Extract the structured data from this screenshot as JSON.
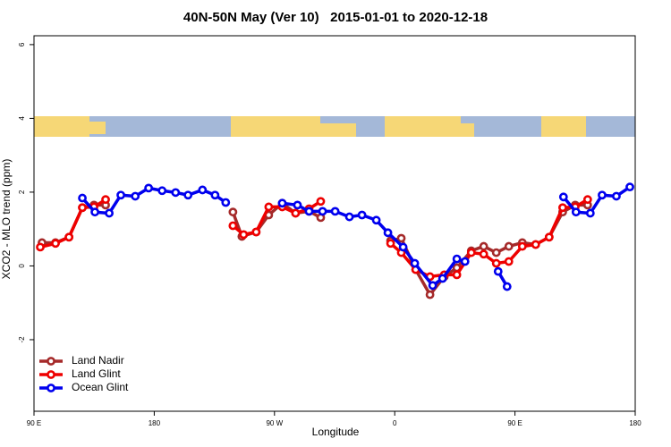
{
  "chart_data": {
    "type": "line",
    "title": "40N-50N May (Ver 10)   2015-01-01 to 2020-12-18",
    "x_label": "Longitude",
    "y_label": "XCO2 - MLO trend (ppm)",
    "xlim": [
      90,
      540
    ],
    "xticks": [
      {
        "value": 90,
        "label": "90 E"
      },
      {
        "value": 180,
        "label": "180"
      },
      {
        "value": 270,
        "label": "90 W"
      },
      {
        "value": 360,
        "label": "0"
      },
      {
        "value": 450,
        "label": "90 E"
      },
      {
        "value": 540,
        "label": "180"
      }
    ],
    "ylim": [
      -3.94,
      6.24
    ],
    "yticks": [
      -2,
      0,
      2,
      4,
      6
    ],
    "legend": "bottom-left",
    "series": [
      {
        "name": "Land Nadir",
        "color": "#a52a2a",
        "x": [
          96.0,
          106.1,
          116.2,
          126.2,
          134.9,
          143.6,
          null,
          238.9,
          245.6,
          256.3,
          265.7,
          275.8,
          285.8,
          295.9,
          304.6,
          null,
          356.9,
          364.9,
          375.7,
          386.4,
          397.1,
          406.5,
          417.3,
          426.6,
          436.0,
          445.4,
          455.5,
          465.5,
          475.6,
          485.7,
          495.1,
          504.4
        ],
        "values": [
          0.63,
          0.63,
          0.78,
          1.58,
          1.65,
          1.65,
          null,
          1.46,
          0.8,
          0.92,
          1.38,
          1.7,
          1.43,
          1.48,
          1.31,
          null,
          0.68,
          0.75,
          -0.1,
          -0.78,
          -0.29,
          -0.05,
          0.41,
          0.53,
          0.36,
          0.53,
          0.63,
          0.58,
          0.78,
          1.46,
          1.65,
          1.65
        ]
      },
      {
        "name": "Land Glint",
        "color": "#ee0000",
        "x": [
          94.7,
          106.1,
          116.2,
          126.2,
          134.9,
          143.6,
          null,
          238.9,
          246.9,
          256.3,
          265.7,
          275.8,
          285.8,
          295.9,
          304.6,
          null,
          356.9,
          364.9,
          375.7,
          386.4,
          397.1,
          406.5,
          417.3,
          426.6,
          436.0,
          445.4,
          455.5,
          465.5,
          475.6,
          485.7,
          495.1,
          504.4
        ],
        "values": [
          0.51,
          0.61,
          0.78,
          1.58,
          1.6,
          1.8,
          null,
          1.09,
          0.85,
          0.92,
          1.6,
          1.6,
          1.43,
          1.55,
          1.75,
          null,
          0.61,
          0.36,
          -0.1,
          -0.29,
          -0.24,
          -0.24,
          0.36,
          0.32,
          0.07,
          0.12,
          0.53,
          0.58,
          0.78,
          1.58,
          1.6,
          1.8
        ]
      },
      {
        "name": "Ocean Glint",
        "color": "#0000ee",
        "x": [
          126.2,
          135.6,
          146.3,
          155.0,
          165.8,
          175.8,
          185.9,
          196.0,
          205.3,
          216.1,
          225.5,
          233.5,
          null,
          275.8,
          287.2,
          295.9,
          306.0,
          315.4,
          326.1,
          335.5,
          346.2,
          354.9,
          366.3,
          375.0,
          388.4,
          395.8,
          406.5,
          412.6,
          null,
          437.4,
          444.1,
          null,
          486.3,
          495.7,
          506.4,
          515.2,
          525.9,
          536.0
        ],
        "values": [
          1.84,
          1.46,
          1.43,
          1.92,
          1.89,
          2.11,
          2.04,
          1.99,
          1.92,
          2.06,
          1.92,
          1.72,
          null,
          1.7,
          1.65,
          1.48,
          1.48,
          1.48,
          1.33,
          1.38,
          1.24,
          0.9,
          0.51,
          0.07,
          -0.53,
          -0.34,
          0.19,
          0.12,
          null,
          -0.15,
          -0.56,
          null,
          1.87,
          1.46,
          1.43,
          1.92,
          1.89,
          2.14
        ]
      }
    ]
  }
}
